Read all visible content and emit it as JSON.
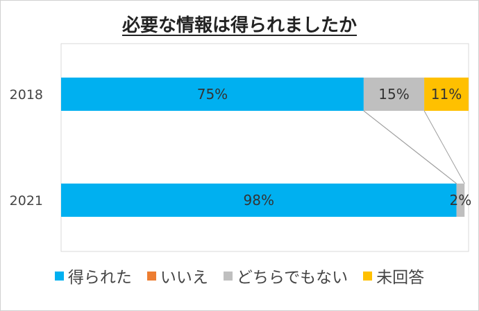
{
  "chart_data": {
    "type": "bar",
    "orientation": "horizontal",
    "stacked": true,
    "title": "必要な情報は得られましたか",
    "categories": [
      "2018",
      "2021"
    ],
    "series": [
      {
        "name": "得られた",
        "color": "#00b0f0",
        "values": [
          75,
          98
        ],
        "labels": [
          "75%",
          "98%"
        ]
      },
      {
        "name": "いいえ",
        "color": "#ed7d31",
        "values": [
          0,
          0
        ],
        "labels": [
          "",
          ""
        ]
      },
      {
        "name": "どちらでもない",
        "color": "#bfbfbf",
        "values": [
          15,
          2
        ],
        "labels": [
          "15%",
          "2%"
        ]
      },
      {
        "name": "未回答",
        "color": "#ffc000",
        "values": [
          11,
          0
        ],
        "labels": [
          "11%",
          ""
        ]
      }
    ],
    "xlim": [
      0,
      101
    ],
    "grid": false,
    "series_lines": true,
    "legend_position": "bottom"
  }
}
